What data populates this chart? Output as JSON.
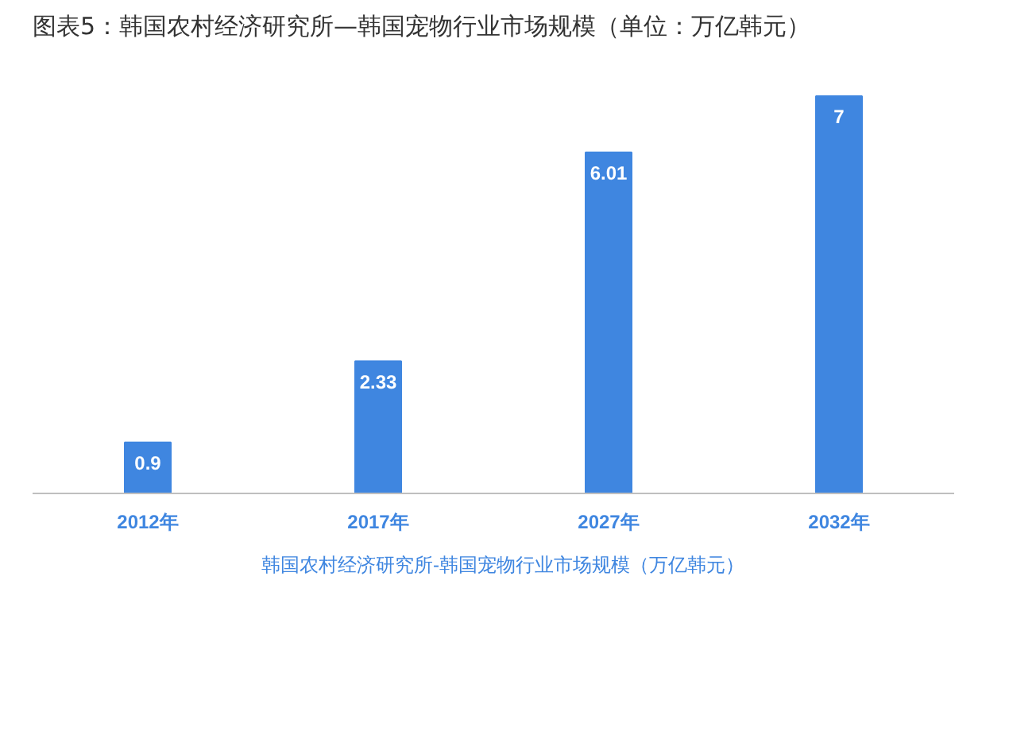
{
  "chart_data": {
    "type": "bar",
    "title": "图表5：韩国农村经济研究所—韩国宠物行业市场规模（单位：万亿韩元）",
    "categories": [
      "2012年",
      "2017年",
      "2027年",
      "2032年"
    ],
    "series": [
      {
        "name": "韩国农村经济研究所-韩国宠物行业市场规模（万亿韩元）",
        "color": "#3f86e0",
        "values": [
          0.9,
          2.33,
          6.01,
          7
        ]
      }
    ],
    "data_labels": true,
    "legend": "bottom"
  }
}
